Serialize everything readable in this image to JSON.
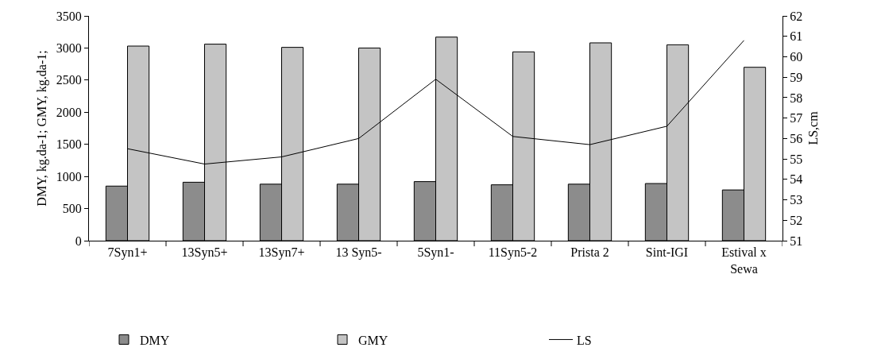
{
  "chart_data": {
    "type": "bar",
    "categories": [
      "7Syn1+",
      "13Syn5+",
      "13Syn7+",
      "13 Syn5-",
      "5Syn1-",
      "11Syn5-2",
      "Prista 2",
      "Sint-IGI",
      "Estival x\nSewa"
    ],
    "series": [
      {
        "name": "DMY",
        "color": "#8c8c8c",
        "values": [
          850,
          910,
          880,
          880,
          920,
          870,
          880,
          890,
          790
        ]
      },
      {
        "name": "GMY",
        "color": "#c4c4c4",
        "values": [
          3030,
          3060,
          3010,
          3000,
          3170,
          2940,
          3080,
          3050,
          2700
        ]
      },
      {
        "name": "LS",
        "type": "line",
        "axis": "y2",
        "color": "#000000",
        "values": [
          55.5,
          54.75,
          55.1,
          56.0,
          58.9,
          56.1,
          55.7,
          56.6,
          60.8
        ]
      }
    ],
    "ylabel": "DMY, kg.da-1; GMY, kg.da-1;",
    "y2label": "LS,cm",
    "ylim": [
      0,
      3500
    ],
    "yticks": [
      0,
      500,
      1000,
      1500,
      2000,
      2500,
      3000,
      3500
    ],
    "y2lim": [
      51,
      62
    ],
    "y2ticks": [
      51,
      52,
      53,
      54,
      55,
      56,
      57,
      58,
      59,
      60,
      61,
      62
    ],
    "legend": "bottom",
    "marker": "none",
    "line_style": "solid"
  }
}
